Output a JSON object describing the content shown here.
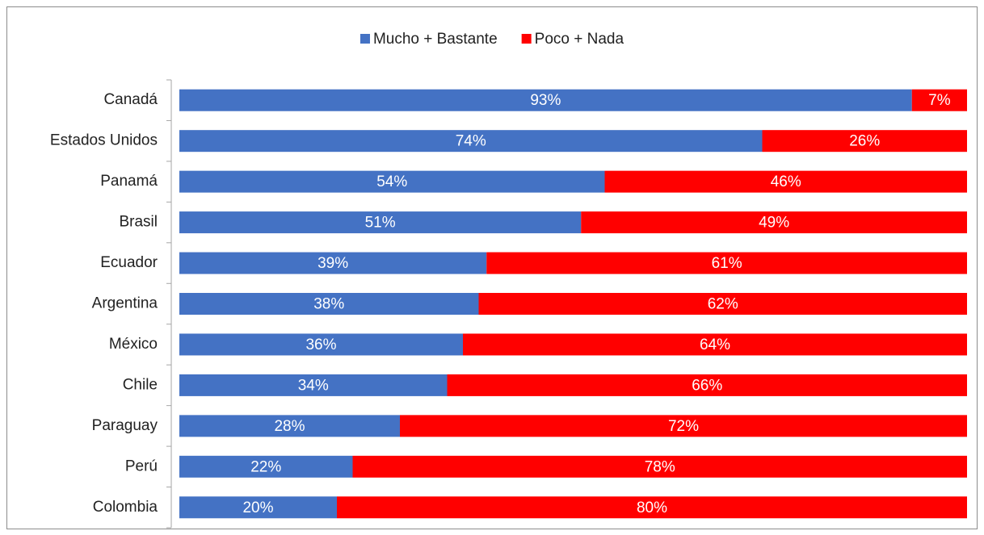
{
  "chart_data": {
    "type": "stacked-bar-horizontal",
    "categories": [
      "Canadá",
      "Estados Unidos",
      "Panamá",
      "Brasil",
      "Ecuador",
      "Argentina",
      "México",
      "Chile",
      "Paraguay",
      "Perú",
      "Colombia"
    ],
    "series": [
      {
        "name": "Mucho + Bastante",
        "color": "#4472c4",
        "values": [
          93,
          74,
          54,
          51,
          39,
          38,
          36,
          34,
          28,
          22,
          20
        ],
        "value_labels": [
          "93%",
          "74%",
          "54%",
          "51%",
          "39%",
          "38%",
          "36%",
          "34%",
          "28%",
          "22%",
          "20%"
        ]
      },
      {
        "name": "Poco + Nada",
        "color": "#ff0000",
        "values": [
          7,
          26,
          46,
          49,
          61,
          62,
          64,
          66,
          72,
          78,
          80
        ],
        "value_labels": [
          "7%",
          "26%",
          "46%",
          "49%",
          "61%",
          "62%",
          "64%",
          "66%",
          "72%",
          "78%",
          "80%"
        ]
      }
    ],
    "xlim": [
      0,
      100
    ],
    "legend": "top"
  }
}
